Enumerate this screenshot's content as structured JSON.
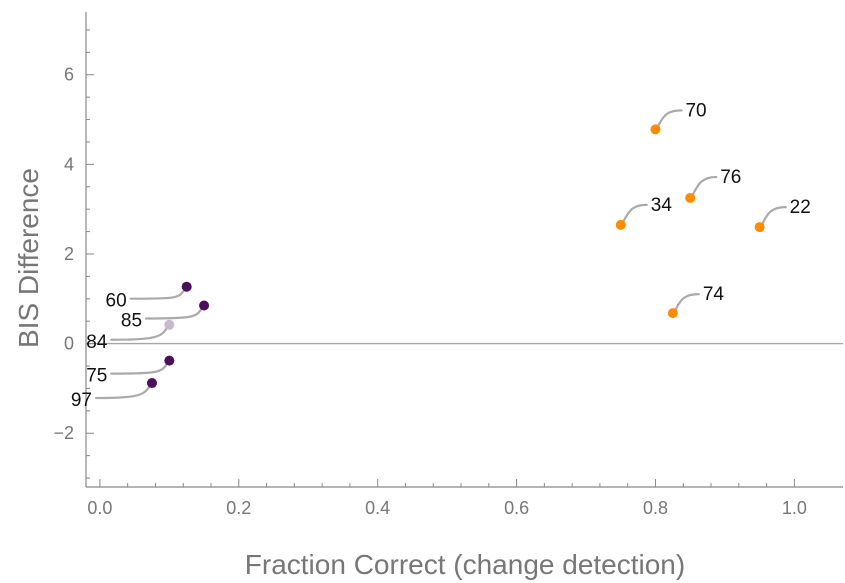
{
  "chart_data": {
    "type": "scatter",
    "xlabel": "Fraction Correct (change detection)",
    "ylabel": "BIS Difference",
    "xlim": [
      -0.02,
      1.07
    ],
    "ylim": [
      -3.2,
      7.4
    ],
    "xticks": [
      "0.0",
      "0.2",
      "0.4",
      "0.6",
      "0.8",
      "1.0"
    ],
    "xtick_values": [
      0,
      0.2,
      0.4,
      0.6,
      0.8,
      1.0
    ],
    "yticks": [
      "−2",
      "0",
      "2",
      "4",
      "6"
    ],
    "ytick_values": [
      -2,
      0,
      2,
      4,
      6
    ],
    "reference_line_y": 0,
    "grid": false,
    "colors": {
      "orange": "#ff8c00",
      "purple": "#4b0f5c",
      "light_purple": "#c9b8d0",
      "leader": "#aaaaaa",
      "axis": "#888888"
    },
    "points": [
      {
        "label": "70",
        "x": 0.8,
        "y": 4.78,
        "color": "orange"
      },
      {
        "label": "76",
        "x": 0.85,
        "y": 3.25,
        "color": "orange"
      },
      {
        "label": "34",
        "x": 0.75,
        "y": 2.65,
        "color": "orange"
      },
      {
        "label": "22",
        "x": 0.95,
        "y": 2.6,
        "color": "orange"
      },
      {
        "label": "74",
        "x": 0.825,
        "y": 0.68,
        "color": "orange"
      },
      {
        "label": "60",
        "x": 0.125,
        "y": 1.27,
        "color": "purple"
      },
      {
        "label": "85",
        "x": 0.15,
        "y": 0.85,
        "color": "purple"
      },
      {
        "label": "84",
        "x": 0.1,
        "y": 0.42,
        "color": "light_purple"
      },
      {
        "label": "75",
        "x": 0.1,
        "y": -0.38,
        "color": "purple"
      },
      {
        "label": "97",
        "x": 0.075,
        "y": -0.88,
        "color": "purple"
      }
    ]
  }
}
